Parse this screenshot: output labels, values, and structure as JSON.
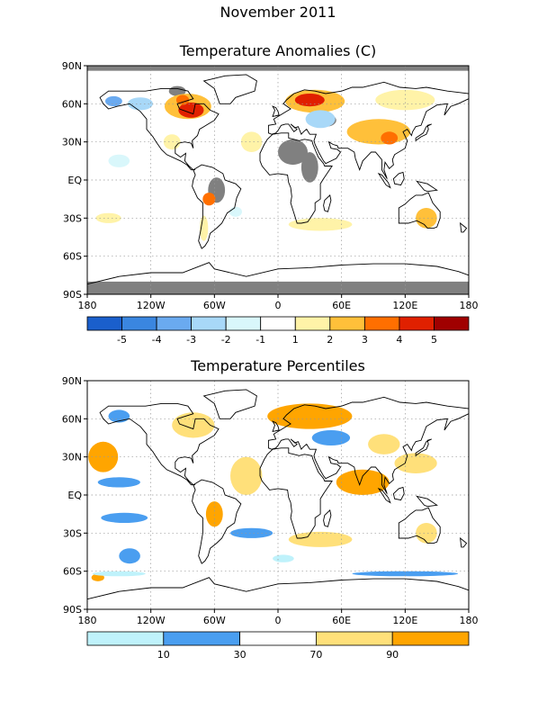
{
  "titles": {
    "month": "November 2011",
    "panel1": "Temperature Anomalies (C)",
    "panel2": "Temperature Percentiles"
  },
  "axes": {
    "lat_labels": [
      "90N",
      "60N",
      "30N",
      "EQ",
      "30S",
      "60S",
      "90S"
    ],
    "lon_labels": [
      "180",
      "120W",
      "60W",
      "0",
      "60E",
      "120E",
      "180"
    ]
  },
  "colors": {
    "land_outline": "#000000",
    "missing": "#808080",
    "anom": [
      "#1a5fcc",
      "#3a86e0",
      "#6aaaf0",
      "#a8d8f8",
      "#d9f7fb",
      "#ffffff",
      "#fff3a8",
      "#ffc03a",
      "#ff6f00",
      "#e02000",
      "#a00000"
    ],
    "pct": [
      "#bff2fb",
      "#4a9ef0",
      "#ffffff",
      "#ffe07a",
      "#ffa500"
    ]
  },
  "legend_anom": {
    "labels": [
      "-5",
      "-4",
      "-3",
      "-2",
      "-1",
      "1",
      "2",
      "3",
      "4",
      "5"
    ]
  },
  "legend_pct": {
    "labels": [
      "10",
      "30",
      "70",
      "90"
    ]
  }
}
